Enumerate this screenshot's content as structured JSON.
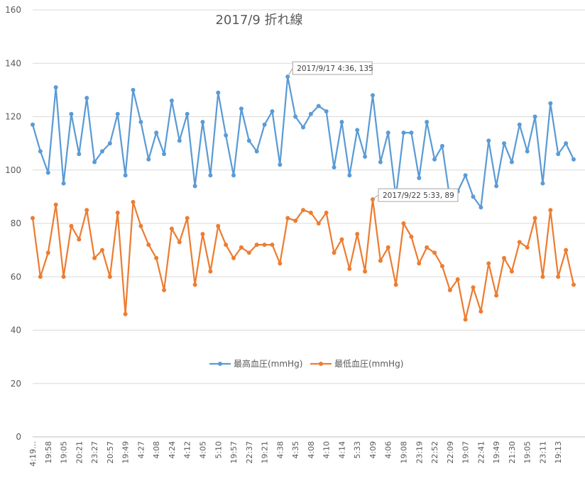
{
  "chart_data": {
    "type": "line",
    "title": "2017/9  折れ線",
    "ylim": [
      0,
      160
    ],
    "yticks": [
      0,
      20,
      40,
      60,
      80,
      100,
      120,
      140,
      160
    ],
    "grid": true,
    "legend_position": "bottom",
    "x_tick_labels": [
      "4:19…",
      "19:58",
      "19:05",
      "20:21",
      "23:27",
      "20:57",
      "19:49",
      "4:27",
      "4:08",
      "4:24",
      "4:12",
      "4:05",
      "5:10",
      "19:57",
      "22:37",
      "19:21",
      "4:38",
      "4:35",
      "4:08",
      "4:10",
      "4:14",
      "5:33",
      "4:09",
      "4:06",
      "19:08",
      "23:19",
      "22:52",
      "22:09",
      "19:07",
      "22:41",
      "19:49",
      "21:30",
      "19:05",
      "23:11",
      "19:13"
    ],
    "series": [
      {
        "name": "最高血圧(mmHg)",
        "color": "#5b9bd5",
        "values": [
          117,
          107,
          99,
          131,
          95,
          121,
          106,
          127,
          103,
          107,
          110,
          121,
          98,
          130,
          118,
          104,
          114,
          106,
          126,
          111,
          121,
          94,
          118,
          98,
          129,
          113,
          98,
          123,
          111,
          107,
          117,
          122,
          102,
          135,
          120,
          116,
          121,
          124,
          122,
          101,
          118,
          98,
          115,
          105,
          128,
          103,
          114,
          90,
          114,
          114,
          97,
          118,
          104,
          109,
          89,
          92,
          98,
          90,
          86,
          111,
          94,
          110,
          103,
          117,
          107,
          120,
          95,
          125,
          106,
          110,
          104
        ]
      },
      {
        "name": "最低血圧(mmHg)",
        "color": "#ed7d31",
        "values": [
          82,
          60,
          69,
          87,
          60,
          79,
          74,
          85,
          67,
          70,
          60,
          84,
          46,
          88,
          79,
          72,
          67,
          55,
          78,
          73,
          82,
          57,
          76,
          62,
          79,
          72,
          67,
          71,
          69,
          72,
          72,
          72,
          65,
          82,
          81,
          85,
          84,
          80,
          84,
          69,
          74,
          63,
          76,
          62,
          89,
          66,
          71,
          57,
          80,
          75,
          65,
          71,
          69,
          64,
          55,
          59,
          44,
          56,
          47,
          65,
          53,
          67,
          62,
          73,
          71,
          82,
          60,
          85,
          60,
          70,
          57
        ]
      }
    ],
    "annotations": [
      {
        "text": "2017/9/17 4:36, 135",
        "series": 0,
        "index": 33
      },
      {
        "text": "2017/9/22 5:33, 89",
        "series": 1,
        "index": 44
      }
    ]
  }
}
